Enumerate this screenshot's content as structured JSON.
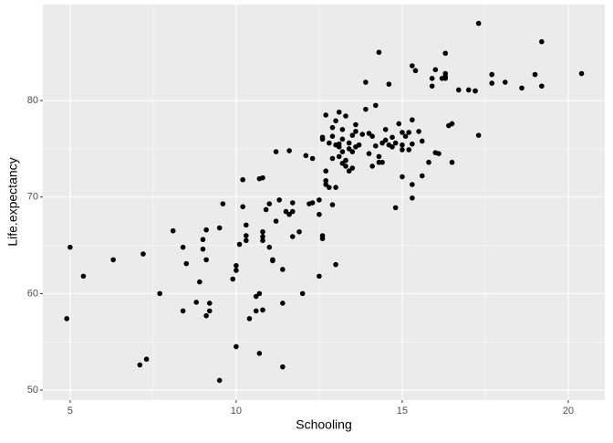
{
  "chart_data": {
    "type": "scatter",
    "x_label": "Schooling",
    "y_label": "Life.expectancy",
    "xlim": [
      4.18,
      21.1
    ],
    "ylim": [
      48.96,
      89.95
    ],
    "xticks": [
      5,
      10,
      15,
      20
    ],
    "yticks": [
      50,
      60,
      70,
      80
    ],
    "grid": true,
    "color": "#000000",
    "x": [
      4.9,
      5.0,
      5.4,
      6.3,
      7.1,
      7.3,
      7.2,
      7.7,
      8.1,
      8.4,
      8.4,
      8.5,
      8.8,
      8.9,
      9.0,
      9.0,
      9.1,
      9.1,
      9.1,
      9.2,
      9.2,
      9.5,
      9.5,
      9.6,
      9.9,
      10.0,
      10.0,
      10.0,
      10.1,
      10.2,
      10.2,
      10.3,
      10.3,
      10.3,
      10.4,
      10.6,
      10.6,
      10.7,
      10.7,
      10.7,
      10.8,
      10.8,
      10.8,
      10.8,
      10.8,
      10.9,
      11.0,
      11.0,
      11.1,
      11.1,
      11.2,
      11.2,
      11.3,
      11.4,
      11.4,
      11.4,
      11.5,
      11.6,
      11.6,
      11.7,
      11.7,
      11.7,
      11.9,
      12.0,
      12.1,
      12.2,
      12.3,
      12.3,
      12.5,
      12.5,
      12.5,
      12.6,
      12.6,
      12.6,
      12.6,
      12.7,
      12.7,
      12.7,
      12.7,
      12.8,
      12.8,
      12.9,
      12.9,
      12.9,
      12.9,
      13.0,
      13.0,
      13.0,
      13.0,
      13.1,
      13.1,
      13.1,
      13.1,
      13.2,
      13.2,
      13.2,
      13.2,
      13.3,
      13.3,
      13.3,
      13.4,
      13.4,
      13.4,
      13.5,
      13.5,
      13.5,
      13.6,
      13.6,
      13.6,
      13.7,
      13.8,
      13.9,
      13.9,
      14.0,
      14.0,
      14.1,
      14.1,
      14.2,
      14.2,
      14.3,
      14.3,
      14.3,
      14.4,
      14.4,
      14.5,
      14.5,
      14.6,
      14.6,
      14.7,
      14.7,
      14.8,
      14.8,
      14.9,
      15.0,
      15.0,
      15.0,
      15.0,
      15.1,
      15.2,
      15.2,
      15.3,
      15.3,
      15.3,
      15.3,
      15.3,
      15.4,
      15.5,
      15.6,
      15.6,
      15.8,
      15.9,
      15.9,
      16.0,
      16.0,
      16.1,
      16.2,
      16.3,
      16.3,
      16.3,
      16.3,
      16.4,
      16.5,
      16.5,
      16.7,
      17.0,
      17.2,
      17.2,
      17.3,
      17.3,
      17.7,
      17.7,
      18.1,
      18.6,
      19.0,
      19.2,
      19.2,
      20.4
    ],
    "y": [
      57.4,
      64.8,
      61.8,
      63.5,
      52.6,
      53.2,
      64.1,
      60.0,
      66.5,
      64.8,
      58.2,
      63.1,
      59.1,
      61.2,
      64.6,
      65.6,
      66.6,
      57.7,
      63.5,
      58.2,
      59.0,
      51.0,
      66.8,
      69.3,
      61.5,
      62.4,
      62.9,
      54.5,
      65.1,
      69.0,
      71.8,
      66.0,
      67.1,
      65.5,
      57.4,
      58.2,
      59.7,
      53.8,
      60.0,
      71.9,
      72.0,
      58.3,
      66.4,
      65.9,
      65.5,
      68.7,
      69.3,
      64.8,
      63.5,
      63.4,
      74.7,
      67.5,
      69.7,
      52.4,
      62.5,
      59.0,
      68.5,
      68.2,
      74.8,
      65.9,
      69.4,
      68.5,
      66.4,
      60.0,
      74.3,
      69.3,
      69.4,
      74.0,
      68.2,
      69.7,
      61.8,
      66.0,
      65.7,
      76.2,
      76.0,
      78.5,
      72.7,
      71.7,
      71.3,
      71.0,
      75.6,
      76.3,
      69.2,
      74.0,
      77.2,
      75.4,
      63.0,
      71.0,
      77.9,
      75.5,
      78.8,
      75.2,
      74.2,
      73.5,
      77.0,
      76.0,
      74.7,
      78.4,
      73.8,
      73.2,
      75.0,
      72.7,
      75.6,
      76.4,
      74.7,
      73.0,
      77.5,
      75.2,
      76.8,
      75.4,
      76.5,
      81.9,
      79.1,
      74.5,
      76.6,
      76.3,
      73.2,
      79.5,
      75.3,
      73.6,
      85.0,
      74.2,
      73.6,
      75.6,
      77.0,
      75.9,
      81.7,
      75.4,
      75.2,
      76.2,
      75.6,
      68.9,
      77.6,
      76.7,
      72.1,
      74.9,
      75.4,
      76.3,
      74.9,
      76.7,
      83.6,
      78.0,
      71.3,
      69.9,
      75.5,
      83.1,
      76.8,
      75.8,
      72.2,
      73.6,
      81.5,
      82.3,
      83.2,
      74.6,
      74.5,
      82.3,
      84.9,
      82.8,
      82.3,
      82.5,
      77.4,
      77.6,
      73.6,
      81.1,
      81.1,
      81.0,
      81.0,
      88.0,
      76.4,
      82.7,
      81.8,
      81.9,
      81.3,
      82.7,
      86.1,
      81.5,
      82.8
    ]
  }
}
